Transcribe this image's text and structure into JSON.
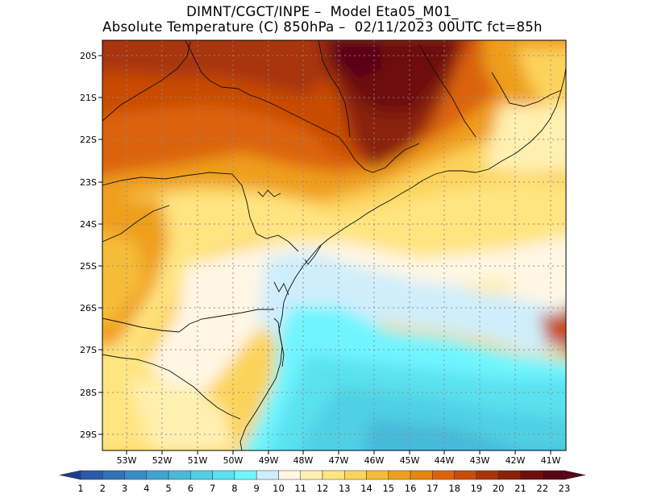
{
  "title": {
    "line1": "DIMNT/CGCT/INPE –  Model Eta05_M01_",
    "line2": "Absolute Temperature (C) 850hPa –  02/11/2023 00UTC fct=85h"
  },
  "map": {
    "lat_ticks": [
      "20S",
      "21S",
      "22S",
      "23S",
      "24S",
      "25S",
      "26S",
      "27S",
      "28S",
      "29S"
    ],
    "lon_ticks": [
      "53W",
      "52W",
      "51W",
      "50W",
      "49W",
      "48W",
      "47W",
      "46W",
      "45W",
      "44W",
      "43W",
      "42W",
      "41W"
    ],
    "grid": true
  },
  "colorbar": {
    "labels": [
      "1",
      "2",
      "3",
      "4",
      "5",
      "6",
      "7",
      "8",
      "9",
      "10",
      "11",
      "12",
      "13",
      "14",
      "15",
      "16",
      "17",
      "18",
      "19",
      "20",
      "21",
      "22",
      "23"
    ],
    "colors": [
      "#1f3f8c",
      "#2a5ba8",
      "#3273b8",
      "#3a8cc6",
      "#3fa4d2",
      "#47bad9",
      "#4fd0e4",
      "#5ae1ef",
      "#6ff5ff",
      "#cfeefb",
      "#fff6e4",
      "#fff0b0",
      "#ffe480",
      "#fcd35a",
      "#f6bc38",
      "#ef9f1e",
      "#e88410",
      "#dc6408",
      "#c94c06",
      "#a83408",
      "#8a2109",
      "#6e0f0d",
      "#5a0514"
    ]
  }
}
